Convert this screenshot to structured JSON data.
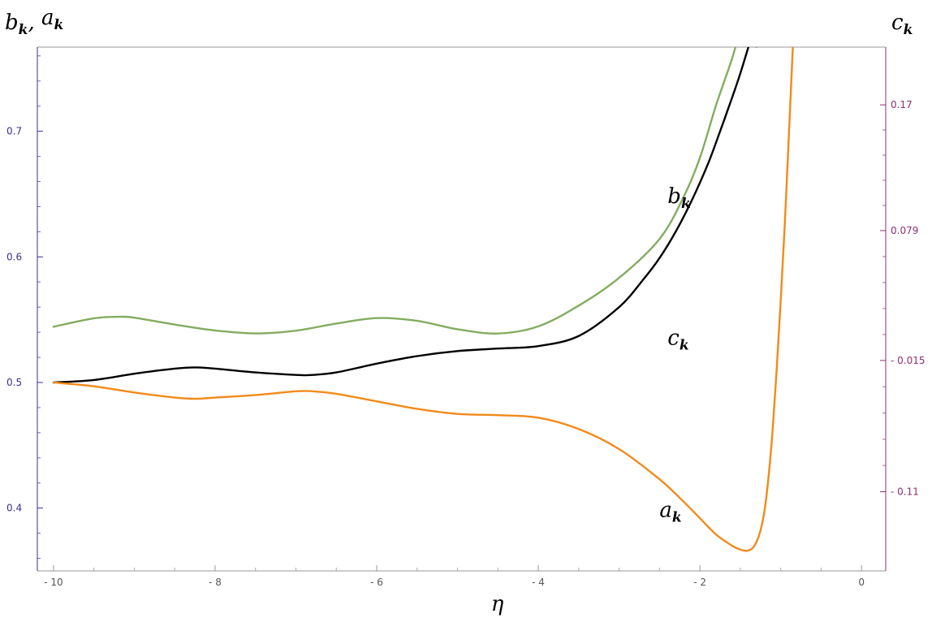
{
  "chart_data": {
    "type": "line",
    "xlabel": "η",
    "ylabel_left": {
      "base": "b",
      "sub": "k",
      "sep": ", ",
      "base2": "a",
      "sub2": "k"
    },
    "ylabel_right": {
      "base": "c",
      "sub": "k"
    },
    "xlim": [
      -10.2,
      0.3
    ],
    "ylim_left": [
      0.35,
      0.767
    ],
    "ylim_right": [
      -0.1673,
      0.2118
    ],
    "x_ticks": [
      -10,
      -8,
      -6,
      -4,
      -2,
      0
    ],
    "x_tick_labels": [
      "- 10",
      "- 8",
      "- 6",
      "- 4",
      "- 2",
      "0"
    ],
    "y_left_ticks": [
      0.4,
      0.5,
      0.6,
      0.7
    ],
    "y_left_tick_labels": [
      "0.4",
      "0.5",
      "0.6",
      "0.7"
    ],
    "y_right_ticks": [
      -0.11,
      -0.015,
      0.079,
      0.17
    ],
    "y_right_tick_labels": [
      "- 0.11",
      "- 0.015",
      "0.079",
      "0.17"
    ],
    "grid": false,
    "colors": {
      "left_axis": "#3b2f8f",
      "right_axis": "#8b2f72",
      "frame": "#999999"
    },
    "series": [
      {
        "name": {
          "base": "b",
          "sub": "k"
        },
        "axis": "left",
        "color": "#000000",
        "x": [
          -10,
          -9.5,
          -9,
          -8.5,
          -8.25,
          -8,
          -7.5,
          -7,
          -6.8,
          -6.5,
          -6,
          -5.5,
          -5,
          -4.5,
          -4,
          -3.5,
          -3,
          -2.7,
          -2.5,
          -2.3,
          -2.1,
          -1.9,
          -1.75,
          -1.6,
          -1.5,
          -1.4
        ],
        "y": [
          0.5,
          0.502,
          0.507,
          0.511,
          0.512,
          0.511,
          0.508,
          0.506,
          0.506,
          0.508,
          0.515,
          0.521,
          0.525,
          0.527,
          0.529,
          0.537,
          0.56,
          0.582,
          0.599,
          0.62,
          0.645,
          0.674,
          0.7,
          0.727,
          0.746,
          0.767
        ]
      },
      {
        "name": {
          "base": "c",
          "sub": "k"
        },
        "axis": "right",
        "color": "#82ad5f",
        "x": [
          -10,
          -9.5,
          -9.2,
          -9,
          -8.5,
          -8,
          -7.5,
          -7,
          -6.5,
          -6,
          -5.5,
          -5,
          -4.5,
          -4,
          -3.5,
          -3,
          -2.5,
          -2.2,
          -2.0,
          -1.8,
          -1.6,
          -1.5,
          -1.4,
          -1.3
        ],
        "y": [
          0.0094,
          0.0155,
          0.0166,
          0.016,
          0.011,
          0.0067,
          0.0046,
          0.0066,
          0.0117,
          0.0157,
          0.0137,
          0.0076,
          0.0045,
          0.0097,
          0.0247,
          0.0448,
          0.0729,
          0.1035,
          0.1316,
          0.1697,
          0.2038,
          0.225,
          0.245,
          0.2118
        ]
      },
      {
        "name": {
          "base": "a",
          "sub": "k"
        },
        "axis": "left",
        "color": "#f28a1a",
        "x": [
          -10,
          -9.5,
          -9,
          -8.5,
          -8.25,
          -8,
          -7.5,
          -7,
          -6.8,
          -6.5,
          -6,
          -5.5,
          -5,
          -4.5,
          -4,
          -3.5,
          -3,
          -2.5,
          -2.2,
          -2,
          -1.8,
          -1.6,
          -1.5,
          -1.42,
          -1.35,
          -1.3,
          -1.25,
          -1.2,
          -1.15,
          -1.1,
          -1.05,
          -1.0,
          -0.95,
          -0.9,
          -0.85
        ],
        "y": [
          0.5,
          0.497,
          0.492,
          0.488,
          0.487,
          0.488,
          0.49,
          0.493,
          0.493,
          0.491,
          0.485,
          0.479,
          0.475,
          0.474,
          0.472,
          0.463,
          0.447,
          0.423,
          0.405,
          0.392,
          0.379,
          0.37,
          0.367,
          0.366,
          0.368,
          0.373,
          0.382,
          0.398,
          0.425,
          0.462,
          0.51,
          0.565,
          0.625,
          0.695,
          0.767
        ]
      }
    ],
    "curve_labels": [
      {
        "base": "b",
        "sub": "k",
        "x": -2.4,
        "y": 0.643
      },
      {
        "base": "c",
        "sub": "k",
        "x": -2.4,
        "y": 0.53
      },
      {
        "base": "a",
        "sub": "k",
        "x": -2.5,
        "y": 0.393
      }
    ]
  }
}
